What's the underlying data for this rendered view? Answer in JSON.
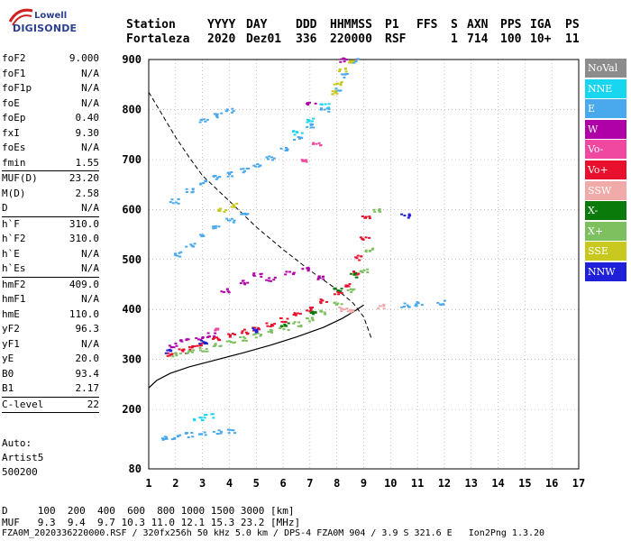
{
  "logo": {
    "line1": "Lowell",
    "line2": "DIGISONDE"
  },
  "header": {
    "row1": [
      "Station",
      "YYYY",
      "DAY",
      "DDD",
      "HHMMSS",
      "P1",
      "FFS",
      "S",
      "AXN",
      "PPS",
      "IGA",
      "PS"
    ],
    "row2": [
      "Fortaleza",
      "2020",
      "Dez01",
      "336",
      "220000",
      "RSF",
      "",
      "1",
      "714",
      "100",
      "10+",
      "11"
    ]
  },
  "params": [
    {
      "k": "foF2",
      "v": "9.000"
    },
    {
      "k": "foF1",
      "v": "N/A"
    },
    {
      "k": "foF1p",
      "v": "N/A"
    },
    {
      "k": "foE",
      "v": "N/A"
    },
    {
      "k": "foEp",
      "v": "0.40"
    },
    {
      "k": "fxI",
      "v": "9.30"
    },
    {
      "k": "foEs",
      "v": "N/A"
    },
    {
      "k": "fmin",
      "v": "1.55"
    },
    {
      "k": "MUF(D)",
      "v": "23.20",
      "sep": true
    },
    {
      "k": "M(D)",
      "v": "2.58"
    },
    {
      "k": "D",
      "v": "N/A"
    },
    {
      "k": "h`F",
      "v": "310.0",
      "sep": true
    },
    {
      "k": "h`F2",
      "v": "310.0"
    },
    {
      "k": "h`E",
      "v": "N/A"
    },
    {
      "k": "h`Es",
      "v": "N/A"
    },
    {
      "k": "hmF2",
      "v": "409.0",
      "sep": true
    },
    {
      "k": "hmF1",
      "v": "N/A"
    },
    {
      "k": "hmE",
      "v": "110.0"
    },
    {
      "k": "yF2",
      "v": "96.3"
    },
    {
      "k": "yF1",
      "v": "N/A"
    },
    {
      "k": "yE",
      "v": "20.0"
    },
    {
      "k": "B0",
      "v": "93.4"
    },
    {
      "k": "B1",
      "v": "2.17"
    },
    {
      "k": "C-level",
      "v": "22",
      "sep": true
    }
  ],
  "autoscale": [
    "Auto:",
    "Artist5",
    "500200"
  ],
  "legend": [
    {
      "label": "NoVal",
      "color": "#8c8c8c"
    },
    {
      "label": "NNE",
      "color": "#19d6f0"
    },
    {
      "label": "E",
      "color": "#4aa8ec"
    },
    {
      "label": "W",
      "color": "#b000a8"
    },
    {
      "label": "Vo-",
      "color": "#f048a0"
    },
    {
      "label": "Vo+",
      "color": "#e8102c"
    },
    {
      "label": "SSW",
      "color": "#f0aaa8"
    },
    {
      "label": "X-",
      "color": "#0a7a0a"
    },
    {
      "label": "X+",
      "color": "#7ec060"
    },
    {
      "label": "SSE",
      "color": "#c8c81e"
    },
    {
      "label": "NNW",
      "color": "#2020d8"
    }
  ],
  "footer": {
    "line1": "D     100  200  400  600  800 1000 1500 3000 [km]",
    "line2": "MUF   9.3  9.4  9.7 10.3 11.0 12.1 15.3 23.2 [MHz]",
    "line3": "FZA0M_2020336220000.RSF / 320fx256h 50 kHz 5.0 km / DPS-4 FZA0M 904 / 3.9 S 321.6 E   Ion2Png 1.3.20"
  },
  "chart_data": {
    "type": "scatter",
    "xlim": [
      1,
      17
    ],
    "ylim": [
      80,
      900
    ],
    "x_ticks": [
      1,
      2,
      3,
      4,
      5,
      6,
      7,
      8,
      9,
      10,
      11,
      12,
      13,
      14,
      15,
      16,
      17
    ],
    "y_ticks": [
      80,
      200,
      300,
      400,
      500,
      600,
      700,
      800,
      900
    ],
    "grid": "dotted",
    "series": [
      {
        "name": "Vo+",
        "color": "#e8102c",
        "points": [
          [
            1.8,
            312
          ],
          [
            2.2,
            318
          ],
          [
            2.6,
            326
          ],
          [
            3.0,
            333
          ],
          [
            3.5,
            342
          ],
          [
            4.0,
            350
          ],
          [
            4.5,
            357
          ],
          [
            5.0,
            364
          ],
          [
            5.5,
            371
          ],
          [
            6.0,
            380
          ],
          [
            6.5,
            390
          ],
          [
            7.0,
            402
          ],
          [
            7.5,
            418
          ],
          [
            8.0,
            436
          ],
          [
            8.3,
            452
          ],
          [
            8.6,
            474
          ],
          [
            8.8,
            505
          ],
          [
            9.0,
            545
          ],
          [
            9.05,
            585
          ]
        ]
      },
      {
        "name": "X+",
        "color": "#7ec060",
        "points": [
          [
            2.0,
            310
          ],
          [
            2.5,
            316
          ],
          [
            3.0,
            322
          ],
          [
            3.5,
            330
          ],
          [
            4.0,
            337
          ],
          [
            4.5,
            343
          ],
          [
            5.0,
            350
          ],
          [
            5.5,
            357
          ],
          [
            6.0,
            364
          ],
          [
            6.5,
            372
          ],
          [
            7.0,
            382
          ],
          [
            7.5,
            396
          ],
          [
            8.0,
            414
          ],
          [
            8.5,
            440
          ],
          [
            9.0,
            478
          ],
          [
            9.2,
            520
          ],
          [
            9.4,
            600
          ]
        ]
      },
      {
        "name": "E",
        "color": "#4aa8ec",
        "points": [
          [
            1.6,
            143
          ],
          [
            2.0,
            146
          ],
          [
            2.5,
            150
          ],
          [
            3.0,
            152
          ],
          [
            3.5,
            155
          ],
          [
            4.0,
            158
          ],
          [
            2.0,
            512
          ],
          [
            2.5,
            530
          ],
          [
            3.0,
            548
          ],
          [
            3.5,
            565
          ],
          [
            4.0,
            580
          ],
          [
            4.5,
            595
          ],
          [
            1.9,
            618
          ],
          [
            2.5,
            640
          ],
          [
            3.0,
            655
          ],
          [
            3.5,
            666
          ],
          [
            4.0,
            672
          ],
          [
            4.5,
            680
          ],
          [
            5.0,
            692
          ],
          [
            5.5,
            705
          ],
          [
            6.0,
            722
          ],
          [
            6.5,
            744
          ],
          [
            7.0,
            770
          ],
          [
            7.5,
            800
          ],
          [
            8.0,
            840
          ],
          [
            8.3,
            870
          ],
          [
            8.6,
            900
          ],
          [
            3.0,
            780
          ],
          [
            3.5,
            790
          ],
          [
            4.0,
            800
          ],
          [
            10.5,
            410
          ],
          [
            11.0,
            412
          ],
          [
            11.8,
            415
          ]
        ]
      },
      {
        "name": "W",
        "color": "#b000a8",
        "points": [
          [
            1.9,
            330
          ],
          [
            2.3,
            338
          ],
          [
            2.8,
            345
          ],
          [
            3.3,
            350
          ],
          [
            3.8,
            440
          ],
          [
            4.5,
            455
          ],
          [
            5.0,
            470
          ],
          [
            5.5,
            462
          ],
          [
            6.2,
            475
          ],
          [
            6.8,
            482
          ],
          [
            7.3,
            465
          ],
          [
            8.2,
            900
          ],
          [
            7.0,
            812
          ]
        ]
      },
      {
        "name": "X-",
        "color": "#0a7a0a",
        "points": [
          [
            6.0,
            372
          ],
          [
            7.0,
            395
          ],
          [
            8.0,
            440
          ],
          [
            8.6,
            470
          ]
        ]
      },
      {
        "name": "SSE",
        "color": "#c8c81e",
        "points": [
          [
            7.8,
            835
          ],
          [
            8.0,
            855
          ],
          [
            8.2,
            880
          ],
          [
            8.4,
            900
          ],
          [
            3.7,
            600
          ],
          [
            4.2,
            610
          ]
        ]
      },
      {
        "name": "NNE",
        "color": "#19d6f0",
        "points": [
          [
            6.5,
            755
          ],
          [
            7.0,
            780
          ],
          [
            7.5,
            810
          ],
          [
            2.8,
            182
          ],
          [
            3.2,
            188
          ]
        ]
      },
      {
        "name": "NNW",
        "color": "#2020d8",
        "points": [
          [
            1.7,
            318
          ],
          [
            3.0,
            335
          ],
          [
            5.0,
            360
          ],
          [
            10.5,
            588
          ]
        ]
      },
      {
        "name": "SSW",
        "color": "#f0aaa8",
        "points": [
          [
            8.2,
            402
          ],
          [
            8.5,
            398
          ],
          [
            9.6,
            408
          ]
        ]
      },
      {
        "name": "Vo-",
        "color": "#f048a0",
        "points": [
          [
            6.8,
            700
          ],
          [
            7.2,
            732
          ],
          [
            3.5,
            360
          ]
        ]
      }
    ],
    "profile_curve": [
      [
        1,
        243
      ],
      [
        1.3,
        258
      ],
      [
        1.8,
        272
      ],
      [
        2.5,
        285
      ],
      [
        3.5,
        299
      ],
      [
        4.5,
        313
      ],
      [
        5.5,
        328
      ],
      [
        6.5,
        345
      ],
      [
        7.5,
        364
      ],
      [
        8.2,
        382
      ],
      [
        8.7,
        398
      ],
      [
        9.0,
        409
      ]
    ],
    "dashed_curve": [
      [
        1,
        835
      ],
      [
        1.5,
        790
      ],
      [
        2,
        745
      ],
      [
        2.5,
        705
      ],
      [
        3,
        668
      ],
      [
        4,
        617
      ],
      [
        5,
        565
      ],
      [
        6,
        520
      ],
      [
        7,
        478
      ],
      [
        8,
        440
      ],
      [
        8.6,
        413
      ],
      [
        9,
        385
      ],
      [
        9.3,
        340
      ]
    ]
  }
}
